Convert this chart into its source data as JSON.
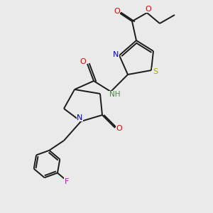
{
  "bg_color": "#eaeaea",
  "bond_color": "#1a1a1a",
  "bond_width": 1.4,
  "figsize": [
    3.0,
    3.0
  ],
  "dpi": 100,
  "colors": {
    "O": "#dd0000",
    "N": "#0000cc",
    "S": "#aaaa00",
    "F": "#cc00cc",
    "NH": "#448844",
    "C": "#1a1a1a"
  }
}
